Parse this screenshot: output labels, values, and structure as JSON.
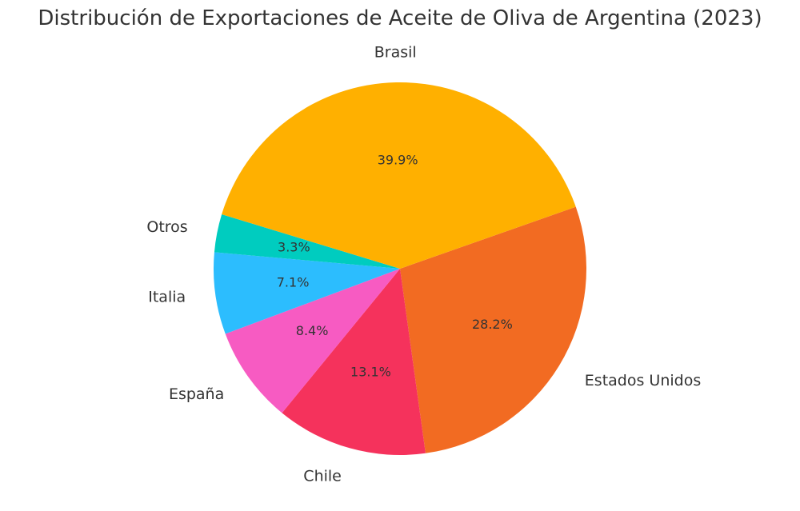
{
  "chart_data": {
    "type": "pie",
    "title": "Distribución de Exportaciones de Aceite de Oliva de Argentina (2023)",
    "categories": [
      "Estados Unidos",
      "Chile",
      "España",
      "Italia",
      "Otros",
      "Brasil"
    ],
    "values": [
      28.2,
      13.1,
      8.4,
      7.1,
      3.3,
      39.9
    ],
    "value_labels": [
      "28.2%",
      "13.1%",
      "8.4%",
      "7.1%",
      "3.3%",
      "39.9%"
    ],
    "colors": [
      "#F26B22",
      "#F5325C",
      "#F75BC2",
      "#2CBDFE",
      "#00CCBF",
      "#FFB000"
    ],
    "legend": "none"
  }
}
